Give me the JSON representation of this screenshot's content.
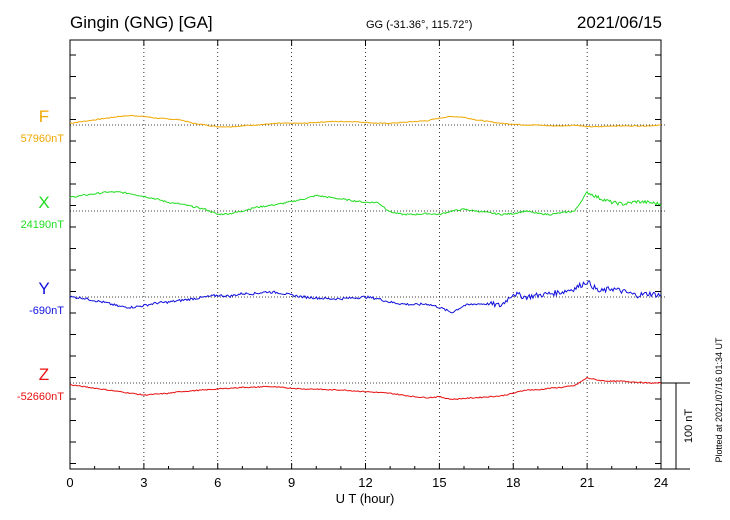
{
  "header": {
    "station": "Gingin (GNG)  [GA]",
    "coords": "GG (-31.36°, 115.72°)",
    "date": "2021/06/15"
  },
  "plotted_note": "Plotted at 2021/07/16 01:34 UT",
  "scale_label": "100 nT",
  "chart_data": {
    "type": "line",
    "xlabel": "U T (hour)",
    "xlim": [
      0,
      24
    ],
    "xticks": [
      0,
      3,
      6,
      9,
      12,
      15,
      18,
      21,
      24
    ],
    "grid": true,
    "scale_bar_nT": 100,
    "series": [
      {
        "name": "F",
        "baseline_label": "57960nT",
        "baseline_nT": 57960,
        "color": "#f0a800",
        "x": [
          0,
          0.5,
          1,
          1.5,
          2,
          2.5,
          3,
          3.5,
          4,
          4.5,
          5,
          5.5,
          6,
          6.5,
          7,
          7.5,
          8,
          8.5,
          9,
          9.5,
          10,
          10.5,
          11,
          11.5,
          12,
          12.5,
          13,
          13.5,
          14,
          14.5,
          15,
          15.5,
          16,
          16.5,
          17,
          17.5,
          18,
          18.5,
          19,
          19.5,
          20,
          20.5,
          21,
          21.5,
          22,
          22.5,
          23,
          23.5,
          24
        ],
        "y": [
          57962,
          57964,
          57966,
          57968,
          57970,
          57971,
          57970,
          57968,
          57967,
          57966,
          57962,
          57960,
          57958,
          57958,
          57959,
          57960,
          57961,
          57962,
          57962,
          57962,
          57963,
          57964,
          57964,
          57964,
          57963,
          57962,
          57962,
          57963,
          57964,
          57965,
          57968,
          57970,
          57969,
          57966,
          57964,
          57962,
          57961,
          57960,
          57960,
          57959,
          57959,
          57960,
          57958,
          57958,
          57959,
          57959,
          57959,
          57959,
          57960
        ]
      },
      {
        "name": "X",
        "baseline_label": "24190nT",
        "baseline_nT": 24190,
        "color": "#22dd22",
        "x": [
          0,
          0.5,
          1,
          1.5,
          2,
          2.5,
          3,
          3.5,
          4,
          4.5,
          5,
          5.5,
          6,
          6.5,
          7,
          7.5,
          8,
          8.5,
          9,
          9.5,
          10,
          10.5,
          11,
          11.5,
          12,
          12.5,
          13,
          13.5,
          14,
          14.5,
          15,
          15.5,
          16,
          16.5,
          17,
          17.5,
          18,
          18.5,
          19,
          19.5,
          20,
          20.5,
          21,
          21.5,
          22,
          22.5,
          23,
          23.5,
          24
        ],
        "y": [
          24206,
          24208,
          24210,
          24212,
          24212,
          24210,
          24207,
          24204,
          24200,
          24198,
          24195,
          24192,
          24186,
          24187,
          24190,
          24194,
          24196,
          24198,
          24201,
          24204,
          24208,
          24206,
          24204,
          24202,
          24200,
          24200,
          24189,
          24186,
          24186,
          24187,
          24186,
          24190,
          24192,
          24190,
          24188,
          24186,
          24187,
          24190,
          24187,
          24186,
          24188,
          24190,
          24212,
          24205,
          24200,
          24198,
          24201,
          24200,
          24198
        ]
      },
      {
        "name": "Y",
        "baseline_label": "-690nT",
        "baseline_nT": -690,
        "color": "#1010dd",
        "x": [
          0,
          0.5,
          1,
          1.5,
          2,
          2.5,
          3,
          3.5,
          4,
          4.5,
          5,
          5.5,
          6,
          6.5,
          7,
          7.5,
          8,
          8.5,
          9,
          9.5,
          10,
          10.5,
          11,
          11.5,
          12,
          12.5,
          13,
          13.5,
          14,
          14.5,
          15,
          15.5,
          16,
          16.5,
          17,
          17.5,
          18,
          18.5,
          19,
          19.5,
          20,
          20.5,
          21,
          21.5,
          22,
          22.5,
          23,
          23.5,
          24
        ],
        "y": [
          -690,
          -691,
          -694,
          -697,
          -701,
          -702,
          -700,
          -697,
          -696,
          -694,
          -692,
          -690,
          -688,
          -689,
          -686,
          -686,
          -684,
          -685,
          -688,
          -690,
          -691,
          -692,
          -692,
          -691,
          -690,
          -692,
          -696,
          -698,
          -699,
          -698,
          -702,
          -708,
          -700,
          -698,
          -698,
          -700,
          -686,
          -690,
          -688,
          -686,
          -684,
          -680,
          -672,
          -684,
          -680,
          -684,
          -688,
          -686,
          -688
        ]
      },
      {
        "name": "Z",
        "baseline_label": "-52660nT",
        "baseline_nT": -52660,
        "color": "#e81010",
        "x": [
          0,
          0.5,
          1,
          1.5,
          2,
          2.5,
          3,
          3.5,
          4,
          4.5,
          5,
          5.5,
          6,
          6.5,
          7,
          7.5,
          8,
          8.5,
          9,
          9.5,
          10,
          10.5,
          11,
          11.5,
          12,
          12.5,
          13,
          13.5,
          14,
          14.5,
          15,
          15.5,
          16,
          16.5,
          17,
          17.5,
          18,
          18.5,
          19,
          19.5,
          20,
          20.5,
          21,
          21.5,
          22,
          22.5,
          23,
          23.5,
          24
        ],
        "y": [
          -52662,
          -52664,
          -52666,
          -52668,
          -52670,
          -52672,
          -52674,
          -52673,
          -52672,
          -52670,
          -52669,
          -52668,
          -52667,
          -52666,
          -52665,
          -52665,
          -52664,
          -52665,
          -52666,
          -52667,
          -52667,
          -52668,
          -52668,
          -52669,
          -52670,
          -52671,
          -52672,
          -52674,
          -52676,
          -52677,
          -52676,
          -52679,
          -52678,
          -52677,
          -52676,
          -52675,
          -52672,
          -52668,
          -52668,
          -52666,
          -52665,
          -52663,
          -52654,
          -52657,
          -52658,
          -52658,
          -52659,
          -52660,
          -52660
        ]
      }
    ]
  }
}
